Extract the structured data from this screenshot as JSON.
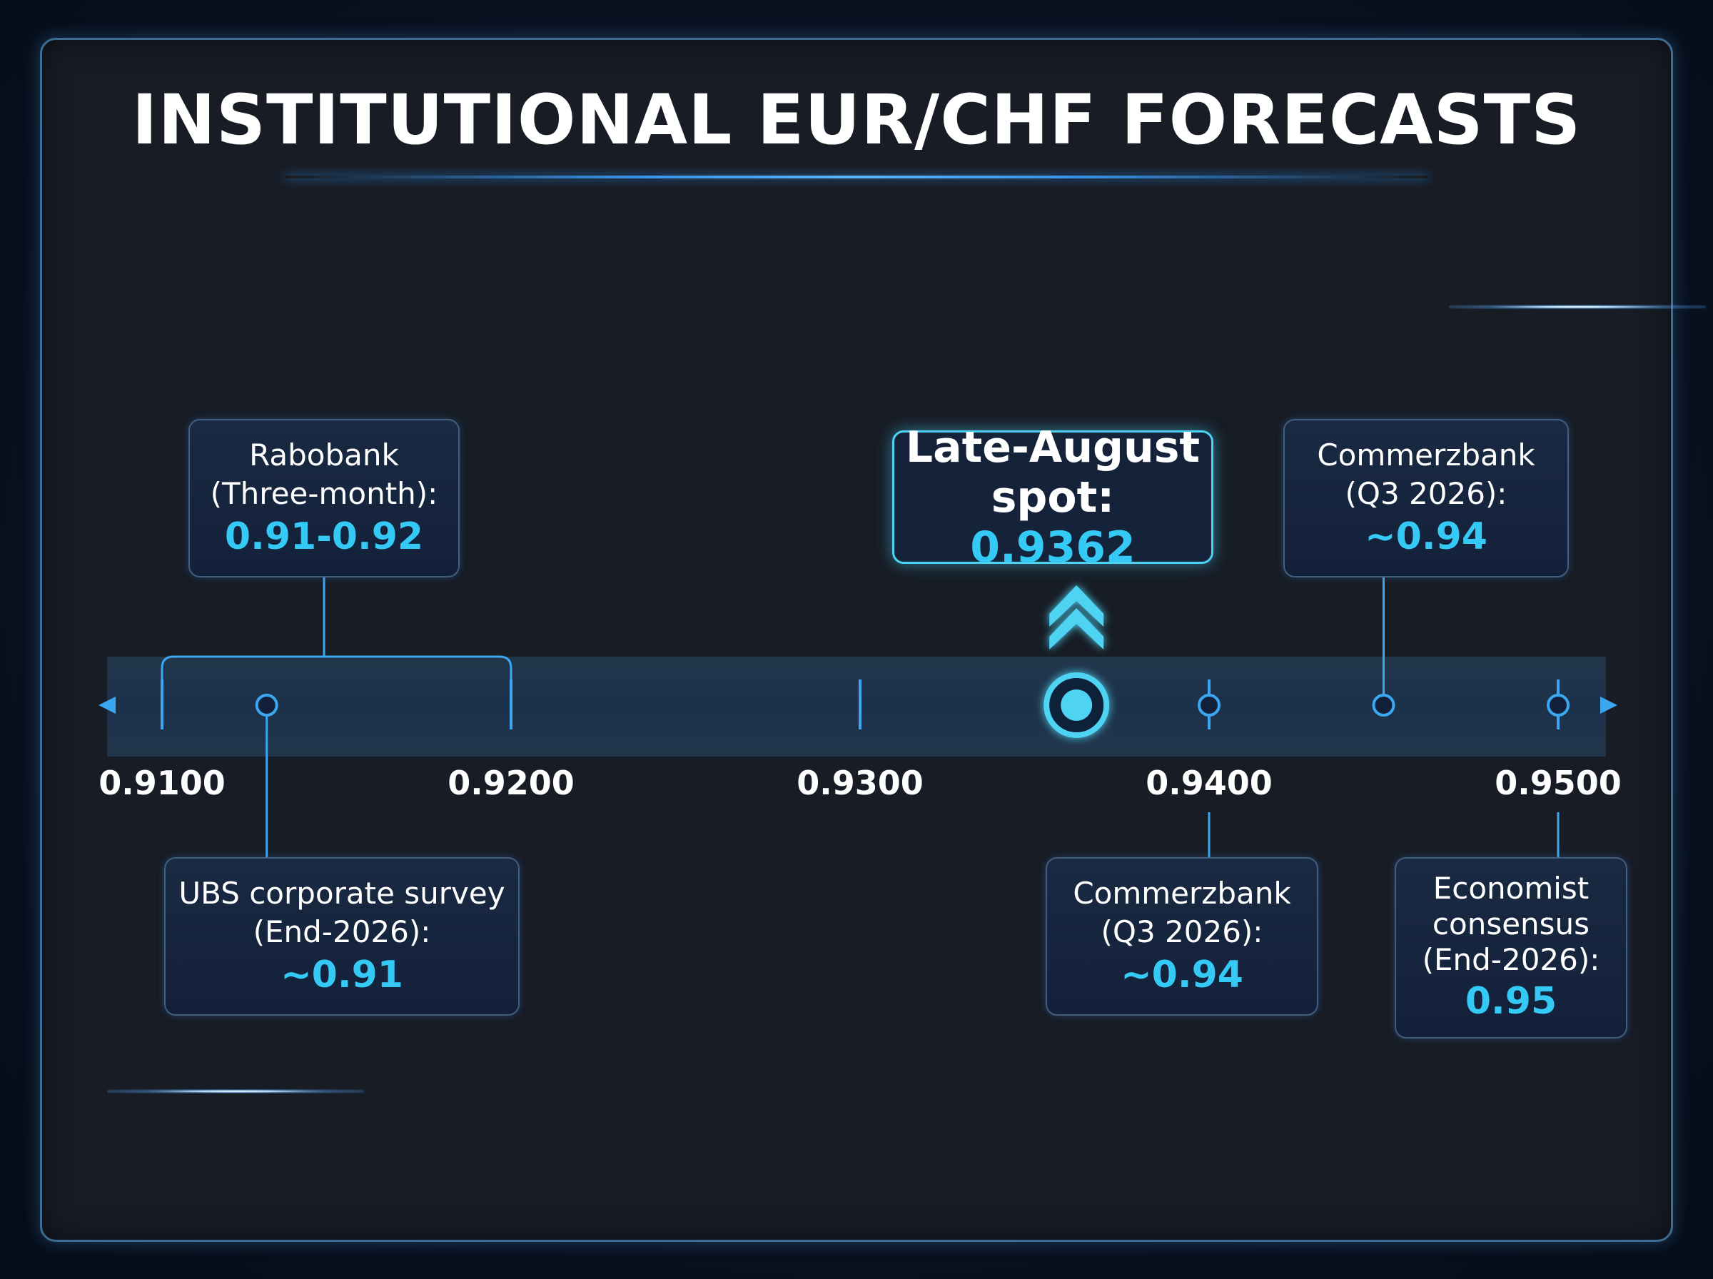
{
  "title": "INSTITUTIONAL EUR/CHF FORECASTS",
  "axis": {
    "min": 0.91,
    "max": 0.95,
    "ticks": [
      {
        "value": 0.91,
        "label": "0.9100"
      },
      {
        "value": 0.92,
        "label": "0.9200"
      },
      {
        "value": 0.93,
        "label": "0.9300"
      },
      {
        "value": 0.94,
        "label": "0.9400"
      },
      {
        "value": 0.95,
        "label": "0.9500"
      }
    ]
  },
  "spot": {
    "label": "Late-August spot:",
    "value_text": "0.9362",
    "value": 0.9362
  },
  "forecasts": [
    {
      "id": "rabobank",
      "label": "Rabobank\n(Three-month):",
      "value_text": "0.91-0.92",
      "range": [
        0.91,
        0.92
      ]
    },
    {
      "id": "commerzbank-top",
      "label": "Commerzbank\n(Q3 2026):",
      "value_text": "~0.94",
      "value": 0.945
    },
    {
      "id": "ubs",
      "label": "UBS corporate survey\n(End-2026):",
      "value_text": "~0.91",
      "value": 0.913
    },
    {
      "id": "commerzbank-bottom",
      "label": "Commerzbank\n(Q3 2026):",
      "value_text": "~0.94",
      "value": 0.94
    },
    {
      "id": "economist",
      "label": "Economist\nconsensus\n(End-2026):",
      "value_text": "0.95",
      "value": 0.95
    }
  ],
  "colors": {
    "accent": "#35c9f5",
    "axis": "#3aa8f0",
    "frame": "#3d6b92",
    "background": "#171c25"
  }
}
